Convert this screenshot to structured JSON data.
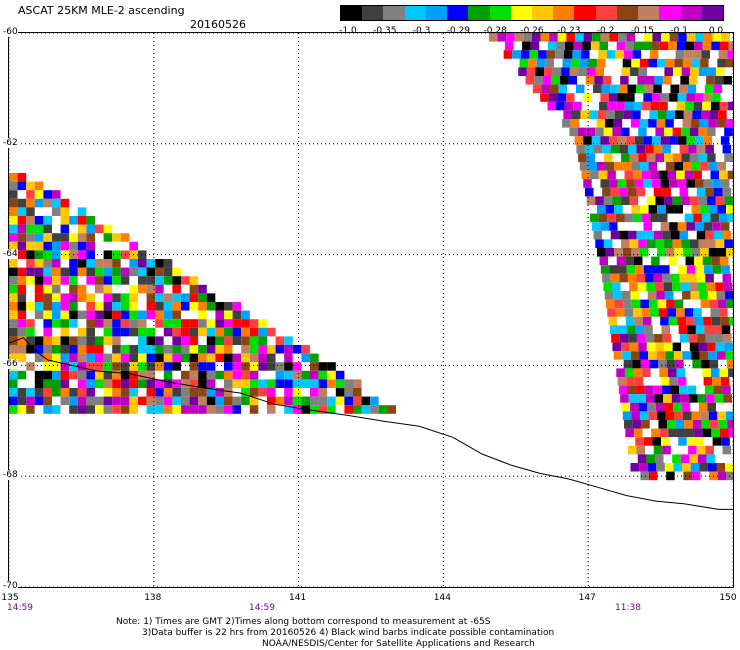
{
  "title": "ASCAT 25KM MLE-2 ascending",
  "date": "20160526",
  "colorbar": {
    "colors": [
      "#000000",
      "#404040",
      "#808080",
      "#00c8ff",
      "#00a0ff",
      "#0000ff",
      "#00a000",
      "#00e000",
      "#ffff00",
      "#ffc800",
      "#ff8000",
      "#ff0000",
      "#ff4040",
      "#8b4513",
      "#c08060",
      "#ff00ff",
      "#c000c0",
      "#7000a0"
    ],
    "labels": [
      "-1.0",
      "-0.35",
      "-0.3",
      "-0.29",
      "-0.28",
      "-0.26",
      "-0.23",
      "-0.2",
      "-0.15",
      "-0.1",
      "0.0"
    ]
  },
  "latitudes": [
    "-60",
    "-62",
    "-64",
    "-66",
    "-68",
    "-70"
  ],
  "longitudes": [
    "135",
    "138",
    "141",
    "144",
    "147",
    "150"
  ],
  "times": [
    "14:59",
    "14:59",
    "11:38"
  ],
  "notes": [
    "Note: 1) Times are GMT 2)Times along bottom correspond to measurement at -65S",
    "3)Data buffer is 22 hrs from 20160526 4) Black wind barbs indicate possible contamination",
    "NOAA/NESDIS/Center for Satellite Applications and Research"
  ],
  "map": {
    "lon_range": [
      135,
      150
    ],
    "lat_range": [
      -70,
      -60
    ],
    "coastline": [
      [
        135,
        -65.6
      ],
      [
        135.3,
        -65.5
      ],
      [
        135.5,
        -65.7
      ],
      [
        135.8,
        -65.9
      ],
      [
        136.3,
        -66.0
      ],
      [
        136.8,
        -66.1
      ],
      [
        137.5,
        -66.15
      ],
      [
        138.3,
        -66.3
      ],
      [
        139,
        -66.4
      ],
      [
        139.8,
        -66.5
      ],
      [
        140.5,
        -66.7
      ],
      [
        141.2,
        -66.8
      ],
      [
        142,
        -66.9
      ],
      [
        142.7,
        -67.0
      ],
      [
        143.5,
        -67.1
      ],
      [
        144.2,
        -67.3
      ],
      [
        144.8,
        -67.6
      ],
      [
        145.4,
        -67.8
      ],
      [
        146,
        -67.95
      ],
      [
        146.6,
        -68.05
      ],
      [
        147.2,
        -68.2
      ],
      [
        147.8,
        -68.35
      ],
      [
        148.4,
        -68.45
      ],
      [
        149,
        -68.5
      ],
      [
        149.7,
        -68.6
      ],
      [
        150,
        -68.6
      ]
    ]
  }
}
